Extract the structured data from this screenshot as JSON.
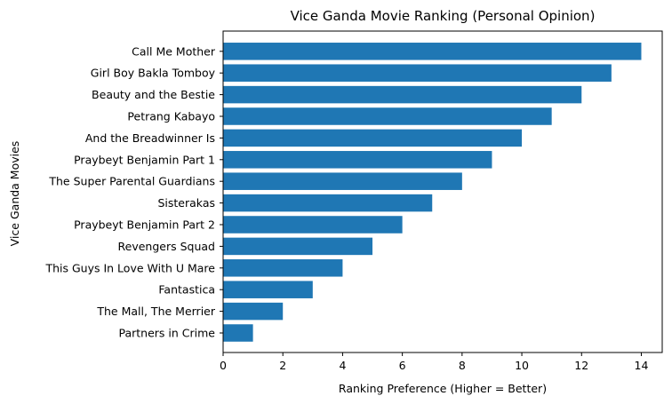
{
  "chart_data": {
    "type": "bar",
    "orientation": "horizontal",
    "title": "Vice Ganda Movie Ranking (Personal Opinion)",
    "xlabel": "Ranking Preference (Higher = Better)",
    "ylabel": "Vice Ganda Movies",
    "xlim": [
      0,
      14.7
    ],
    "xticks": [
      0,
      2,
      4,
      6,
      8,
      10,
      12,
      14
    ],
    "grid": false,
    "bar_color": "#1f77b4",
    "categories": [
      "Partners in Crime",
      "The Mall, The Merrier",
      "Fantastica",
      "This Guys In Love With U Mare",
      "Revengers Squad",
      "Praybeyt Benjamin Part 2",
      "Sisterakas",
      "The Super Parental Guardians",
      "Praybeyt Benjamin Part 1",
      "And the Breadwinner Is",
      "Petrang Kabayo",
      "Beauty and the Bestie",
      "Girl Boy Bakla Tomboy",
      "Call Me Mother"
    ],
    "values": [
      1,
      2,
      3,
      4,
      5,
      6,
      7,
      8,
      9,
      10,
      11,
      12,
      13,
      14
    ]
  }
}
